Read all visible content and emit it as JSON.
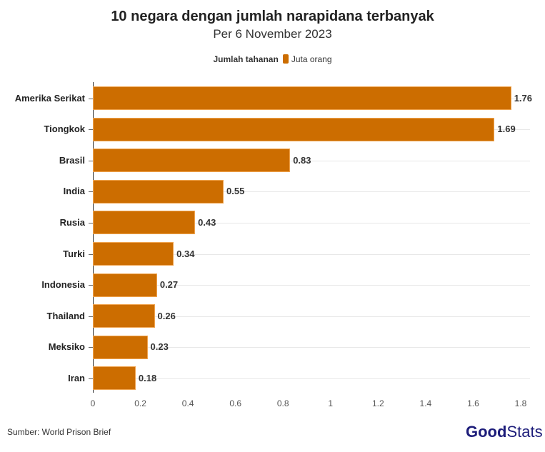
{
  "header": {
    "title": "10 negara dengan jumlah narapidana terbanyak",
    "subtitle": "Per 6 November 2023"
  },
  "legend": {
    "title": "Jumlah tahanan",
    "item": "Juta orang",
    "color": "#cc6d00"
  },
  "footer": {
    "source": "Sumber: World Prison Brief",
    "logo_bold": "Good",
    "logo_light": "Stats"
  },
  "chart_data": {
    "type": "bar",
    "orientation": "horizontal",
    "title": "10 negara dengan jumlah narapidana terbanyak",
    "subtitle": "Per 6 November 2023",
    "categories": [
      "Amerika Serikat",
      "Tiongkok",
      "Brasil",
      "India",
      "Rusia",
      "Turki",
      "Indonesia",
      "Thailand",
      "Meksiko",
      "Iran"
    ],
    "series": [
      {
        "name": "Juta orang",
        "values": [
          1.76,
          1.69,
          0.83,
          0.55,
          0.43,
          0.34,
          0.27,
          0.26,
          0.23,
          0.18
        ],
        "color": "#cc6d00"
      }
    ],
    "xlabel": "",
    "ylabel": "",
    "xlim": [
      0,
      1.85
    ],
    "xticks": [
      "0",
      "0.2",
      "0.4",
      "0.6",
      "0.8",
      "1",
      "1.2",
      "1.4",
      "1.6",
      "1.8"
    ],
    "legend_title": "Jumlah tahanan",
    "legend_position": "top",
    "grid": true,
    "source": "Sumber: World Prison Brief"
  }
}
